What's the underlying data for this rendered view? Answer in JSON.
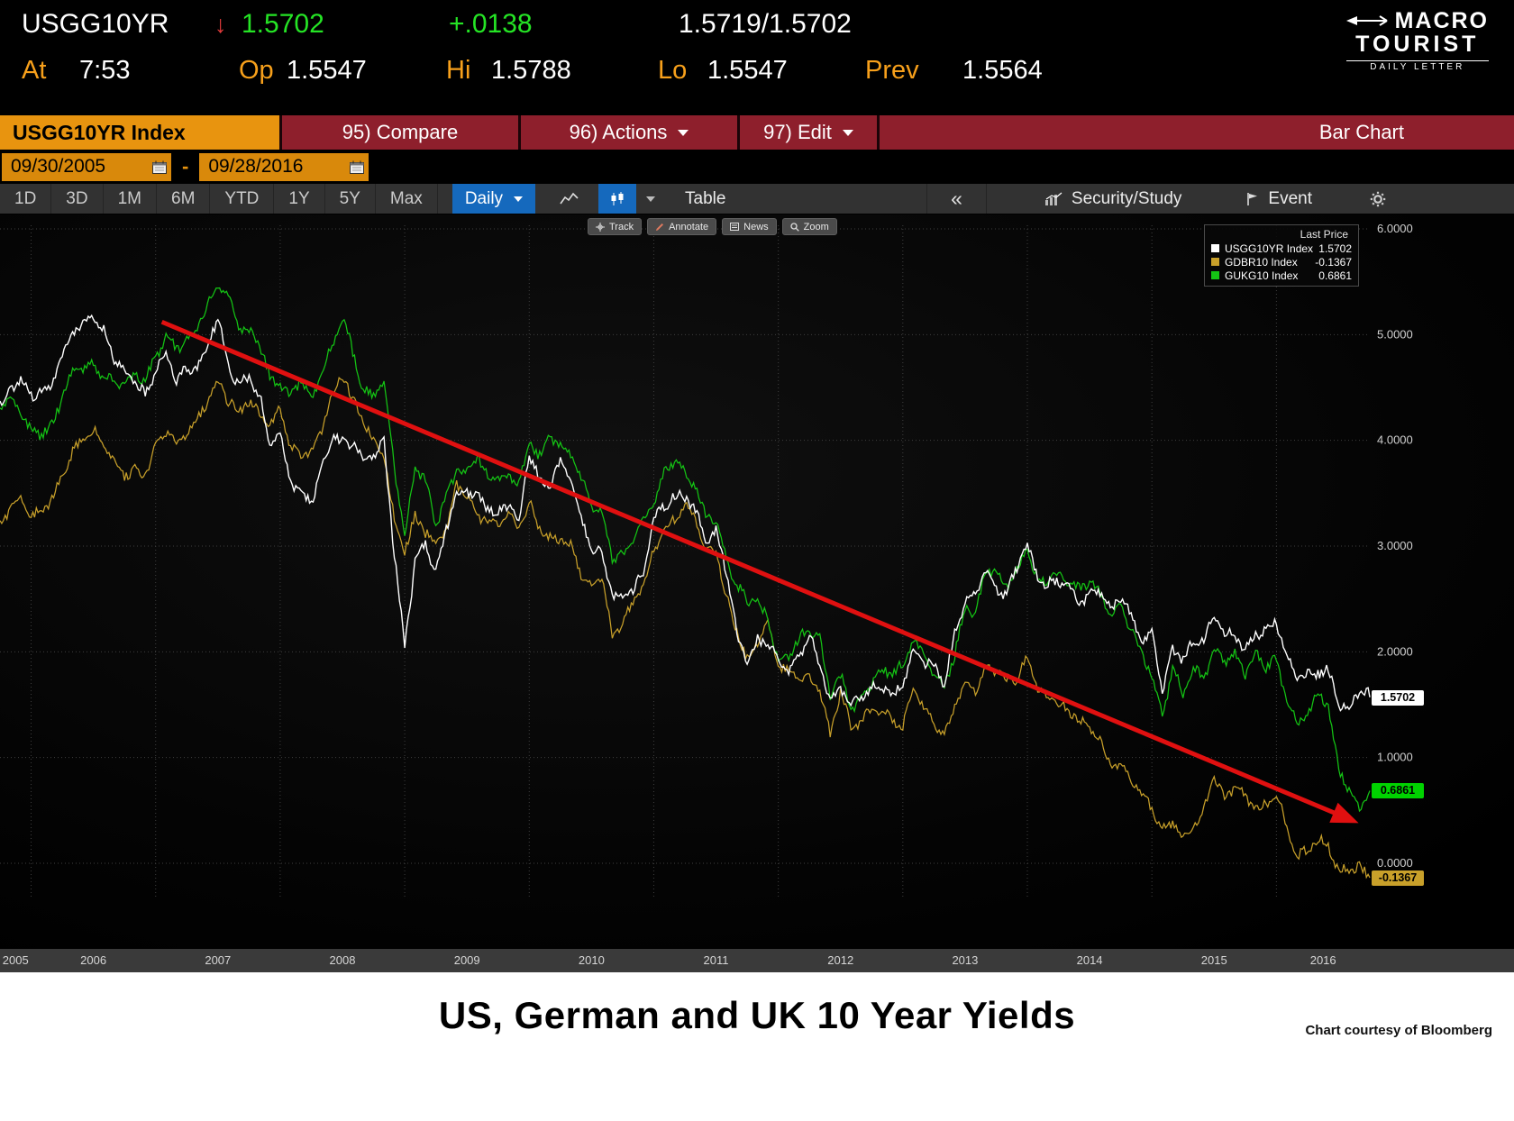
{
  "header": {
    "ticker": "USGG10YR",
    "down_arrow": "↓",
    "last": "1.5702",
    "change": "+.0138",
    "bid_ask": "1.5719/1.5702",
    "at_label": "At",
    "at_value": "7:53",
    "op_label": "Op",
    "op_value": "1.5547",
    "hi_label": "Hi",
    "hi_value": "1.5788",
    "lo_label": "Lo",
    "lo_value": "1.5547",
    "prev_label": "Prev",
    "prev_value": "1.5564",
    "logo": {
      "line1": "MACRO",
      "line2": "TOURIST",
      "sub": "DAILY LETTER"
    }
  },
  "menu": {
    "ticker_tab": "USGG10YR Index",
    "compare": "95) Compare",
    "actions": "96) Actions",
    "edit": "97) Edit",
    "chart_type": "Bar Chart"
  },
  "dates": {
    "start": "09/30/2005",
    "separator": "-",
    "end": "09/28/2016"
  },
  "toolbar": {
    "periods": [
      "1D",
      "3D",
      "1M",
      "6M",
      "YTD",
      "1Y",
      "5Y",
      "Max"
    ],
    "frequency": "Daily",
    "table_label": "Table",
    "back_chevrons": "«",
    "security_study": "Security/Study",
    "event": "Event"
  },
  "mini_tools": [
    "Track",
    "Annotate",
    "News",
    "Zoom"
  ],
  "colors": {
    "amber_tab": "#e8940f",
    "menu_red": "#8e1f2c",
    "quote_green": "#25e425",
    "label_orange": "#f7a01b",
    "selected_blue": "#1569bd",
    "trend_red": "#e01010"
  },
  "chart_data": {
    "type": "line",
    "title": "US, German and UK 10 Year Yields",
    "x_start": 2005.75,
    "x_end": 2016.75,
    "x_frequency_plotted": "monthly approximation of daily series",
    "ylim": [
      -0.8,
      6.14
    ],
    "grid": "dotted",
    "legend_position": "top-right",
    "legend_title": "Last Price",
    "yticks": [
      {
        "v": 6,
        "label": "6.0000"
      },
      {
        "v": 5,
        "label": "5.0000"
      },
      {
        "v": 4,
        "label": "4.0000"
      },
      {
        "v": 3,
        "label": "3.0000"
      },
      {
        "v": 2,
        "label": "2.0000"
      },
      {
        "v": 1,
        "label": "1.0000"
      },
      {
        "v": 0,
        "label": "0.0000"
      }
    ],
    "xticks": [
      "2005",
      "2006",
      "2007",
      "2008",
      "2009",
      "2010",
      "2011",
      "2012",
      "2013",
      "2014",
      "2015",
      "2016"
    ],
    "series": [
      {
        "name": "USGG10YR Index",
        "color": "#ffffff",
        "last": 1.5702,
        "last_label": "1.5702",
        "monthly_values": [
          4.33,
          4.45,
          4.55,
          4.4,
          4.45,
          4.55,
          4.85,
          5.05,
          5.1,
          5.15,
          5.0,
          4.75,
          4.65,
          4.6,
          4.45,
          4.7,
          4.8,
          4.55,
          4.65,
          4.65,
          4.9,
          5.2,
          4.75,
          4.55,
          4.6,
          4.4,
          3.95,
          4.05,
          3.6,
          3.55,
          3.45,
          3.75,
          4.05,
          3.95,
          3.95,
          3.8,
          3.85,
          4.0,
          2.95,
          2.1,
          2.85,
          3.0,
          2.7,
          3.15,
          3.45,
          3.55,
          3.5,
          3.4,
          3.3,
          3.4,
          3.2,
          3.85,
          3.6,
          3.6,
          3.85,
          3.65,
          3.3,
          2.95,
          2.9,
          2.5,
          2.5,
          2.6,
          2.8,
          3.3,
          3.4,
          3.45,
          3.45,
          3.3,
          3.05,
          3.15,
          2.8,
          2.2,
          1.9,
          2.1,
          2.05,
          1.9,
          1.8,
          1.95,
          2.2,
          1.9,
          1.55,
          1.65,
          1.45,
          1.55,
          1.65,
          1.7,
          1.6,
          1.75,
          2.0,
          1.9,
          1.85,
          1.65,
          2.15,
          2.5,
          2.6,
          2.8,
          2.6,
          2.55,
          2.75,
          3.0,
          2.65,
          2.65,
          2.7,
          2.65,
          2.45,
          2.55,
          2.55,
          2.35,
          2.5,
          2.35,
          2.15,
          2.2,
          1.65,
          2.0,
          1.9,
          2.05,
          2.1,
          2.35,
          2.2,
          2.2,
          2.05,
          2.15,
          2.2,
          2.25,
          1.95,
          1.75,
          1.8,
          1.85,
          1.85,
          1.5,
          1.45,
          1.58,
          1.5702
        ]
      },
      {
        "name": "GDBR10 Index",
        "color": "#c8a02a",
        "last": -0.1367,
        "last_label": "-0.1367",
        "monthly_values": [
          3.15,
          3.35,
          3.45,
          3.3,
          3.35,
          3.5,
          3.65,
          3.9,
          3.95,
          4.05,
          3.95,
          3.8,
          3.7,
          3.75,
          3.7,
          3.95,
          4.05,
          3.95,
          4.05,
          4.2,
          4.4,
          4.6,
          4.4,
          4.25,
          4.35,
          4.2,
          4.1,
          4.3,
          3.95,
          3.9,
          3.9,
          4.1,
          4.4,
          4.6,
          4.35,
          4.2,
          4.0,
          3.9,
          3.25,
          2.95,
          3.25,
          3.1,
          3.0,
          3.15,
          3.6,
          3.5,
          3.3,
          3.25,
          3.2,
          3.25,
          3.15,
          3.4,
          3.2,
          3.1,
          3.1,
          3.0,
          2.7,
          2.6,
          2.7,
          2.15,
          2.3,
          2.5,
          2.65,
          2.95,
          3.15,
          3.2,
          3.35,
          3.25,
          3.0,
          3.0,
          2.55,
          2.2,
          1.9,
          2.05,
          2.25,
          1.85,
          1.85,
          1.8,
          1.8,
          1.65,
          1.2,
          1.6,
          1.25,
          1.35,
          1.45,
          1.45,
          1.4,
          1.3,
          1.65,
          1.45,
          1.3,
          1.2,
          1.5,
          1.75,
          1.65,
          1.85,
          1.8,
          1.7,
          1.7,
          1.95,
          1.65,
          1.6,
          1.55,
          1.45,
          1.35,
          1.25,
          1.15,
          0.9,
          0.95,
          0.85,
          0.7,
          0.55,
          0.3,
          0.35,
          0.2,
          0.35,
          0.5,
          0.85,
          0.65,
          0.75,
          0.6,
          0.5,
          0.5,
          0.65,
          0.35,
          0.1,
          0.15,
          0.25,
          0.15,
          -0.1,
          -0.1,
          -0.05,
          -0.1367
        ]
      },
      {
        "name": "GUKG10 Index",
        "color": "#14c414",
        "last": 0.6861,
        "last_label": "0.6861",
        "monthly_values": [
          4.25,
          4.4,
          4.3,
          4.1,
          4.1,
          4.15,
          4.4,
          4.6,
          4.65,
          4.7,
          4.6,
          4.6,
          4.55,
          4.65,
          4.55,
          4.75,
          4.95,
          4.85,
          4.95,
          5.1,
          5.3,
          5.5,
          5.35,
          5.05,
          5.0,
          4.9,
          4.6,
          4.55,
          4.45,
          4.6,
          4.35,
          4.6,
          4.85,
          5.15,
          4.85,
          4.5,
          4.45,
          4.55,
          3.75,
          3.05,
          3.7,
          3.6,
          3.2,
          3.5,
          3.75,
          3.7,
          3.85,
          3.6,
          3.6,
          3.65,
          3.6,
          4.0,
          3.9,
          4.05,
          3.95,
          3.85,
          3.6,
          3.35,
          3.35,
          2.9,
          2.95,
          3.1,
          3.25,
          3.4,
          3.65,
          3.8,
          3.7,
          3.6,
          3.3,
          3.3,
          2.85,
          2.6,
          2.45,
          2.45,
          2.3,
          1.95,
          2.0,
          2.15,
          2.2,
          2.1,
          1.55,
          1.75,
          1.45,
          1.6,
          1.75,
          1.85,
          1.8,
          1.85,
          2.1,
          1.95,
          1.75,
          1.7,
          2.0,
          2.45,
          2.35,
          2.75,
          2.7,
          2.6,
          2.75,
          3.0,
          2.7,
          2.7,
          2.75,
          2.65,
          2.55,
          2.65,
          2.55,
          2.35,
          2.45,
          2.25,
          2.0,
          1.75,
          1.35,
          1.8,
          1.6,
          1.85,
          1.8,
          2.05,
          1.9,
          1.95,
          1.75,
          1.95,
          1.85,
          1.95,
          1.55,
          1.35,
          1.4,
          1.6,
          1.45,
          0.85,
          0.7,
          0.55,
          0.6861
        ]
      }
    ],
    "trendline": {
      "color": "#e01010",
      "from": {
        "x": 2007.05,
        "y": 5.12
      },
      "to": {
        "x": 2016.58,
        "y": 0.42
      }
    },
    "price_tags": [
      {
        "label": "1.5702",
        "value": 1.5702,
        "bg": "#ffffff",
        "fg": "#000000"
      },
      {
        "label": "0.6861",
        "value": 0.6861,
        "bg": "#00d300",
        "fg": "#000000"
      },
      {
        "label": "-0.1367",
        "value": -0.1367,
        "bg": "#c8a02a",
        "fg": "#000000"
      }
    ]
  },
  "footer": {
    "title": "US, German and UK 10 Year Yields",
    "credit": "Chart courtesy of Bloomberg"
  }
}
